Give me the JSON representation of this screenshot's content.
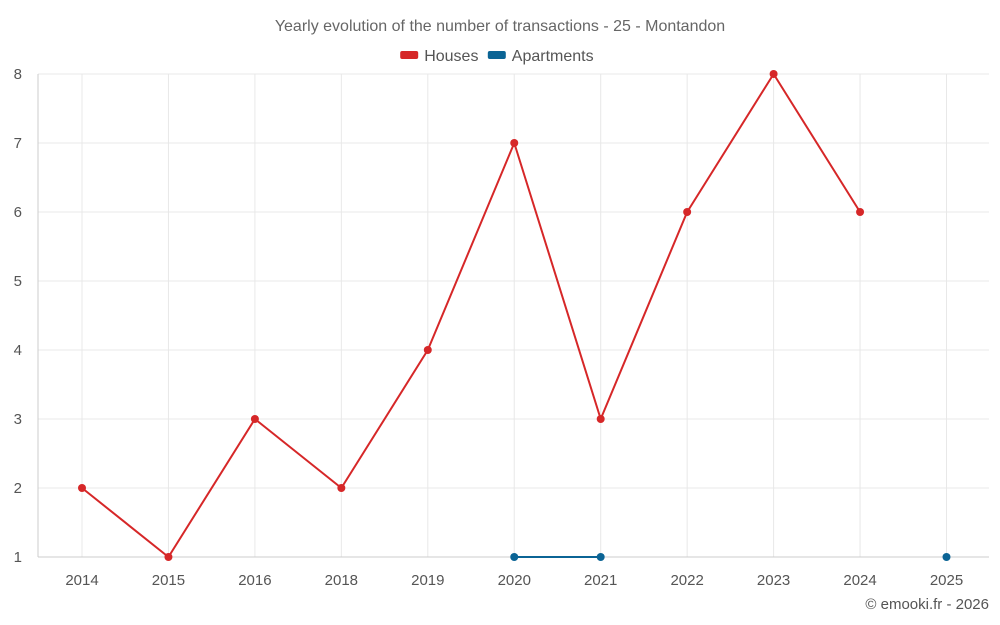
{
  "chart_data": {
    "type": "line",
    "title": "Yearly evolution of the number of transactions - 25 - Montandon",
    "categories": [
      "2014",
      "2015",
      "2016",
      "2018",
      "2019",
      "2020",
      "2021",
      "2022",
      "2023",
      "2024",
      "2025"
    ],
    "series": [
      {
        "name": "Houses",
        "color": "#d62728",
        "values": [
          2,
          1,
          3,
          2,
          4,
          7,
          3,
          6,
          8,
          6,
          null
        ]
      },
      {
        "name": "Apartments",
        "color": "#0b6495",
        "values": [
          null,
          null,
          null,
          null,
          null,
          1,
          1,
          null,
          null,
          null,
          1
        ]
      }
    ],
    "xlabel": "",
    "ylabel": "",
    "ylim": [
      1,
      8
    ],
    "yticks": [
      1,
      2,
      3,
      4,
      5,
      6,
      7,
      8
    ],
    "grid": true,
    "legend_position": "top-center"
  },
  "footer": {
    "credit": "© emooki.fr - 2026"
  }
}
